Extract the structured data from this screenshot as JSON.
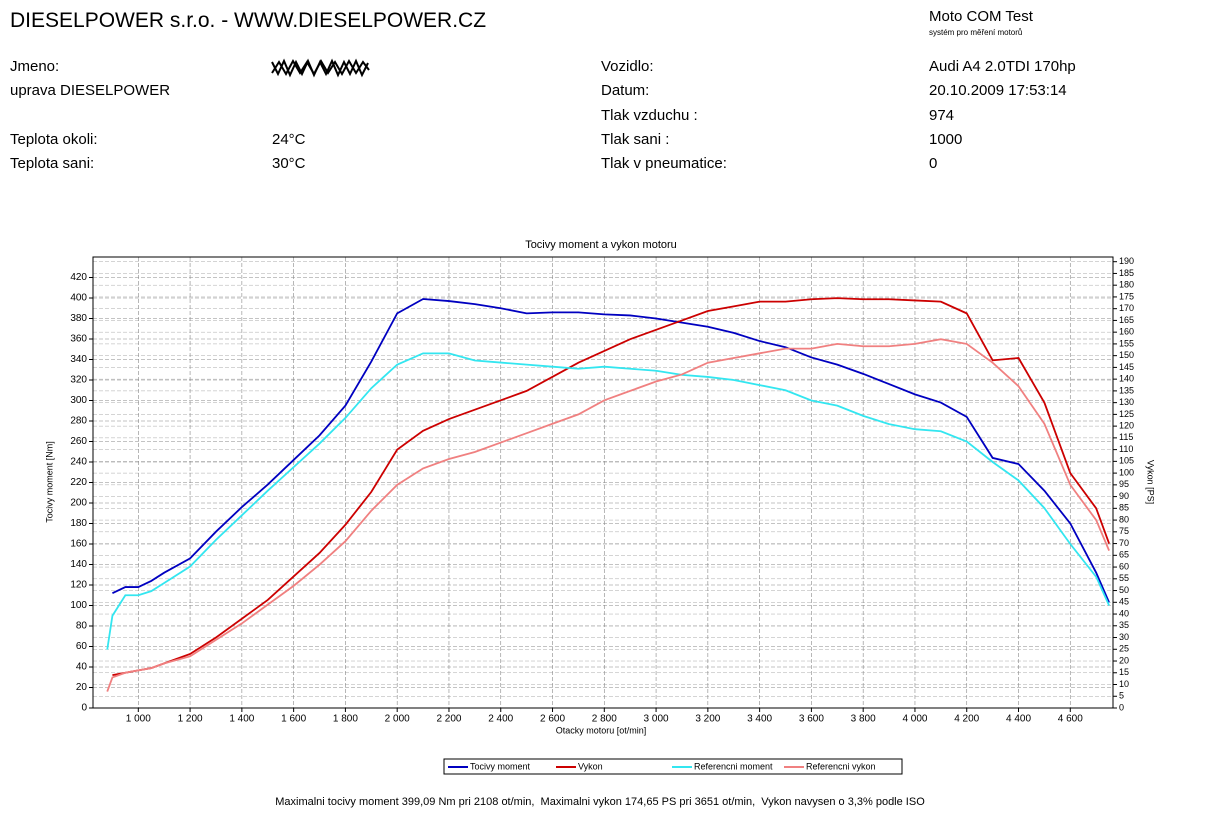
{
  "header": {
    "title": "DIESELPOWER s.r.o. - WWW.DIESELPOWER.CZ",
    "brand": "Moto COM Test",
    "brand_sub": "systém pro měření motorů"
  },
  "info_left": [
    {
      "label": "Jmeno:"
    },
    {
      "label": "uprava DIESELPOWER"
    },
    {
      "label": "Teplota okoli:",
      "value": "24°C"
    },
    {
      "label": "Teplota sani:",
      "value": "30°C"
    }
  ],
  "info_right": [
    {
      "label": "Vozidlo:",
      "value": "Audi A4 2.0TDI 170hp"
    },
    {
      "label": "Datum:",
      "value": "20.10.2009 17:53:14"
    },
    {
      "label": "Tlak vzduchu :",
      "value": "974"
    },
    {
      "label": "Tlak sani :",
      "value": "1000"
    },
    {
      "label": "Tlak v pneumatice:",
      "value": "0"
    }
  ],
  "chart_data": {
    "type": "line",
    "title": "Tocivy moment a vykon motoru",
    "x_label": "Otacky motoru [ot/min]",
    "y_label": "Tocivy moment [Nm]",
    "y2_label": "Vykon [PS]",
    "x": [
      880,
      900,
      950,
      1000,
      1050,
      1100,
      1200,
      1300,
      1400,
      1500,
      1600,
      1700,
      1800,
      1900,
      2000,
      2100,
      2200,
      2300,
      2400,
      2500,
      2600,
      2700,
      2800,
      2900,
      3000,
      3100,
      3200,
      3300,
      3400,
      3500,
      3600,
      3700,
      3800,
      3900,
      4000,
      4100,
      4200,
      4300,
      4400,
      4500,
      4600,
      4700,
      4750
    ],
    "xlim": [
      825,
      4765
    ],
    "xticks": [
      {
        "value": 1000,
        "label": "1 000"
      },
      {
        "value": 1200,
        "label": "1 200"
      },
      {
        "value": 1400,
        "label": "1 400"
      },
      {
        "value": 1600,
        "label": "1 600"
      },
      {
        "value": 1800,
        "label": "1 800"
      },
      {
        "value": 2000,
        "label": "2 000"
      },
      {
        "value": 2200,
        "label": "2 200"
      },
      {
        "value": 2400,
        "label": "2 400"
      },
      {
        "value": 2600,
        "label": "2 600"
      },
      {
        "value": 2800,
        "label": "2 800"
      },
      {
        "value": 3000,
        "label": "3 000"
      },
      {
        "value": 3200,
        "label": "3 200"
      },
      {
        "value": 3400,
        "label": "3 400"
      },
      {
        "value": 3600,
        "label": "3 600"
      },
      {
        "value": 3800,
        "label": "3 800"
      },
      {
        "value": 4000,
        "label": "4 000"
      },
      {
        "value": 4200,
        "label": "4 200"
      },
      {
        "value": 4400,
        "label": "4 400"
      },
      {
        "value": 4600,
        "label": "4 600"
      }
    ],
    "ylim": [
      0,
      440
    ],
    "yticks": [
      0,
      20,
      40,
      60,
      80,
      100,
      120,
      140,
      160,
      180,
      200,
      220,
      240,
      260,
      280,
      300,
      320,
      340,
      360,
      380,
      400,
      420
    ],
    "y2lim": [
      0,
      192
    ],
    "y2ticks": [
      0,
      5,
      10,
      15,
      20,
      25,
      30,
      35,
      40,
      45,
      50,
      55,
      60,
      65,
      70,
      75,
      80,
      85,
      90,
      95,
      100,
      105,
      110,
      115,
      120,
      125,
      130,
      135,
      140,
      145,
      150,
      155,
      160,
      165,
      170,
      175,
      180,
      185,
      190
    ],
    "grid": true,
    "legend": "bottom",
    "series": [
      {
        "name": "Tocivy moment",
        "color": "#0000c0",
        "values": [
          null,
          112,
          118,
          118,
          124,
          132,
          146,
          172,
          196,
          218,
          242,
          266,
          295,
          338,
          385,
          399,
          397,
          394,
          390,
          385,
          386,
          386,
          384,
          383,
          380,
          376,
          372,
          366,
          358,
          352,
          342,
          335,
          326,
          316,
          306,
          298,
          284,
          244,
          238,
          212,
          180,
          132,
          103
        ]
      },
      {
        "name": "Vykon",
        "color": "#cc0000",
        "axis": "y2",
        "values": [
          null,
          14,
          15,
          16,
          17,
          19,
          23,
          30,
          38,
          46,
          56,
          66,
          78,
          92,
          110,
          118,
          123,
          127,
          131,
          135,
          141,
          147,
          152,
          157,
          161,
          165,
          169,
          171,
          173,
          173,
          174,
          174.5,
          174,
          174,
          173.5,
          173,
          168,
          148,
          149,
          130,
          100,
          85,
          70
        ]
      },
      {
        "name": "Referencni moment",
        "color": "#33e6f0",
        "values": [
          57,
          90,
          110,
          110,
          114,
          122,
          138,
          164,
          188,
          212,
          235,
          258,
          283,
          312,
          335,
          346,
          346,
          339,
          337,
          335,
          333,
          331,
          333,
          331,
          329,
          325,
          323,
          320,
          315,
          310,
          300,
          295,
          285,
          277,
          272,
          270,
          260,
          240,
          222,
          195,
          160,
          128,
          100
        ]
      },
      {
        "name": "Referencni vykon",
        "color": "#f08080",
        "axis": "y2",
        "values": [
          7,
          13,
          15,
          16,
          17,
          19,
          22,
          29,
          36,
          44,
          52,
          61,
          71,
          84,
          95,
          102,
          106,
          109,
          113,
          117,
          121,
          125,
          131,
          135,
          139,
          142,
          147,
          149,
          151,
          153,
          153,
          155,
          154,
          154,
          155,
          157,
          155,
          147,
          137,
          121,
          95,
          80,
          67
        ]
      }
    ]
  },
  "footer": {
    "note": "Maximalni tocivy moment 399,09 Nm pri 2108 ot/min,  Maximalni vykon 174,65 PS pri 3651 ot/min,  Vykon navysen o 3,3% podle ISO"
  }
}
